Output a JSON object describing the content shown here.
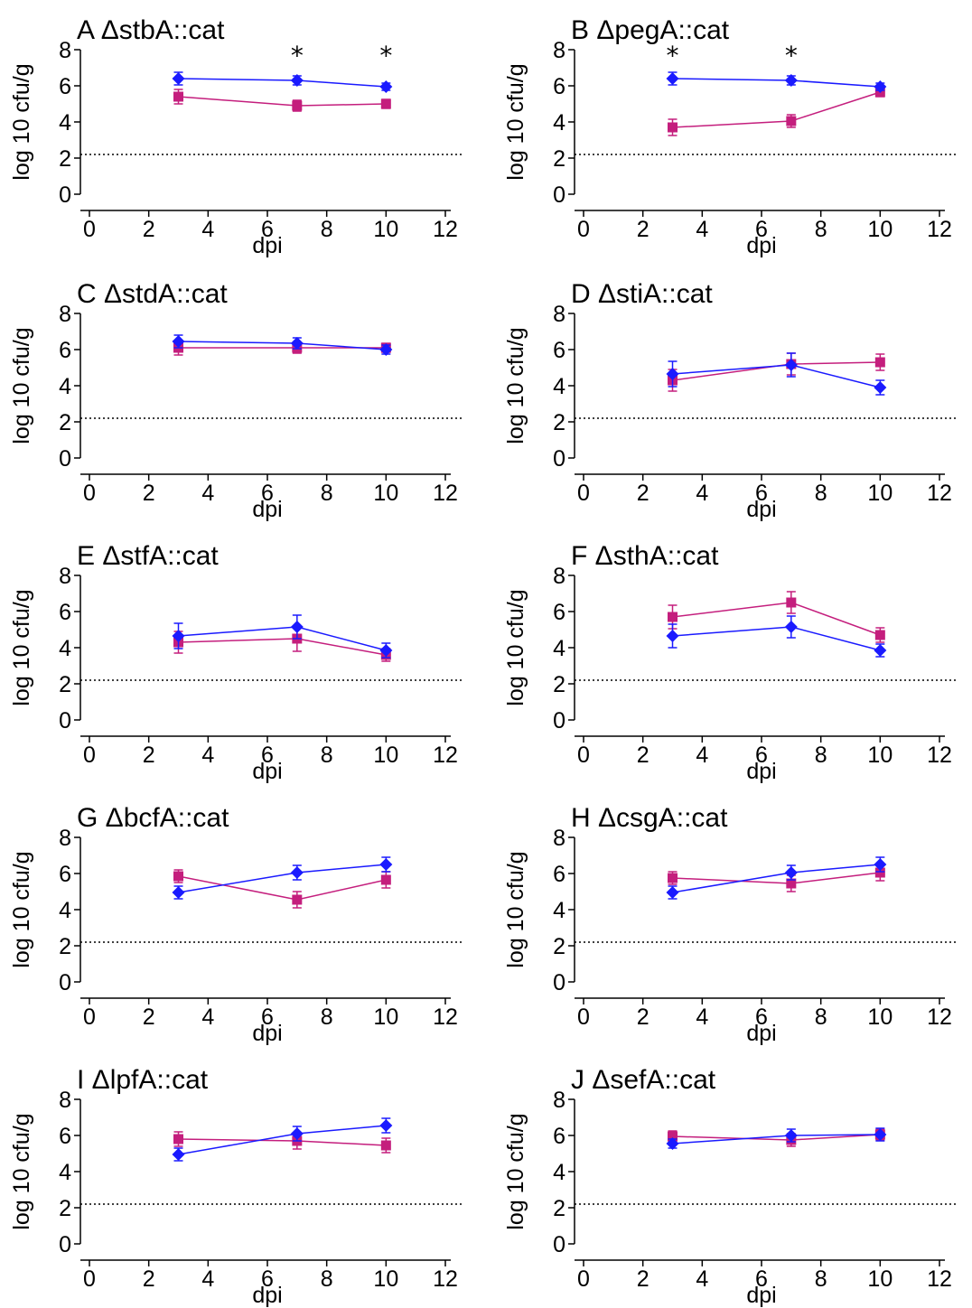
{
  "chart_data": [
    {
      "type": "line",
      "letter": "A",
      "title": "ΔstbA::cat",
      "xlabel": "dpi",
      "ylabel": "log 10 cfu/g",
      "xlim": [
        0,
        12
      ],
      "ylim": [
        0,
        8
      ],
      "xticks": [
        "0",
        "2",
        "4",
        "6",
        "8",
        "10",
        "12"
      ],
      "yticks": [
        "0",
        "2",
        "4",
        "6",
        "8"
      ],
      "detection_limit": 2.2,
      "x": [
        3,
        7,
        10
      ],
      "series": [
        {
          "color": "#1a1aff",
          "marker": "diamond",
          "values": [
            6.4,
            6.3,
            5.95
          ],
          "errors": [
            0.35,
            0.25,
            0.2
          ]
        },
        {
          "color": "#c41e7d",
          "marker": "square",
          "values": [
            5.4,
            4.9,
            5.0
          ],
          "errors": [
            0.4,
            0.3,
            0.25
          ]
        }
      ],
      "significance": [
        "",
        "*",
        "*"
      ]
    },
    {
      "type": "line",
      "letter": "B",
      "title": "ΔpegA::cat",
      "xlabel": "dpi",
      "ylabel": "log 10 cfu/g",
      "xlim": [
        0,
        12
      ],
      "ylim": [
        0,
        8
      ],
      "xticks": [
        "0",
        "2",
        "4",
        "6",
        "8",
        "10",
        "12"
      ],
      "yticks": [
        "0",
        "2",
        "4",
        "6",
        "8"
      ],
      "detection_limit": 2.2,
      "x": [
        3,
        7,
        10
      ],
      "series": [
        {
          "color": "#1a1aff",
          "marker": "diamond",
          "values": [
            6.4,
            6.3,
            5.95
          ],
          "errors": [
            0.35,
            0.25,
            0.2
          ]
        },
        {
          "color": "#c41e7d",
          "marker": "square",
          "values": [
            3.7,
            4.05,
            5.65
          ],
          "errors": [
            0.45,
            0.35,
            0.25
          ]
        }
      ],
      "significance": [
        "*",
        "*",
        ""
      ]
    },
    {
      "type": "line",
      "letter": "C",
      "title": "ΔstdA::cat",
      "xlabel": "dpi",
      "ylabel": "log 10 cfu/g",
      "xlim": [
        0,
        12
      ],
      "ylim": [
        0,
        8
      ],
      "xticks": [
        "0",
        "2",
        "4",
        "6",
        "8",
        "10",
        "12"
      ],
      "yticks": [
        "0",
        "2",
        "4",
        "6",
        "8"
      ],
      "detection_limit": 2.2,
      "x": [
        3,
        7,
        10
      ],
      "series": [
        {
          "color": "#1a1aff",
          "marker": "diamond",
          "values": [
            6.45,
            6.35,
            6.0
          ],
          "errors": [
            0.35,
            0.3,
            0.25
          ]
        },
        {
          "color": "#c41e7d",
          "marker": "square",
          "values": [
            6.1,
            6.1,
            6.1
          ],
          "errors": [
            0.4,
            0.3,
            0.25
          ]
        }
      ],
      "significance": [
        "",
        "",
        ""
      ]
    },
    {
      "type": "line",
      "letter": "D",
      "title": "ΔstiA::cat",
      "xlabel": "dpi",
      "ylabel": "log 10 cfu/g",
      "xlim": [
        0,
        12
      ],
      "ylim": [
        0,
        8
      ],
      "xticks": [
        "0",
        "2",
        "4",
        "6",
        "8",
        "10",
        "12"
      ],
      "yticks": [
        "0",
        "2",
        "4",
        "6",
        "8"
      ],
      "detection_limit": 2.2,
      "x": [
        3,
        7,
        10
      ],
      "series": [
        {
          "color": "#1a1aff",
          "marker": "diamond",
          "values": [
            4.65,
            5.15,
            3.9
          ],
          "errors": [
            0.7,
            0.65,
            0.4
          ]
        },
        {
          "color": "#c41e7d",
          "marker": "square",
          "values": [
            4.3,
            5.2,
            5.3
          ],
          "errors": [
            0.6,
            0.6,
            0.45
          ]
        }
      ],
      "significance": [
        "",
        "",
        ""
      ]
    },
    {
      "type": "line",
      "letter": "E",
      "title": "ΔstfA::cat",
      "xlabel": "dpi",
      "ylabel": "log 10 cfu/g",
      "xlim": [
        0,
        12
      ],
      "ylim": [
        0,
        8
      ],
      "xticks": [
        "0",
        "2",
        "4",
        "6",
        "8",
        "10",
        "12"
      ],
      "yticks": [
        "0",
        "2",
        "4",
        "6",
        "8"
      ],
      "detection_limit": 2.2,
      "x": [
        3,
        7,
        10
      ],
      "series": [
        {
          "color": "#1a1aff",
          "marker": "diamond",
          "values": [
            4.65,
            5.15,
            3.85
          ],
          "errors": [
            0.7,
            0.65,
            0.4
          ]
        },
        {
          "color": "#c41e7d",
          "marker": "square",
          "values": [
            4.3,
            4.5,
            3.6
          ],
          "errors": [
            0.6,
            0.7,
            0.35
          ]
        }
      ],
      "significance": [
        "",
        "",
        ""
      ]
    },
    {
      "type": "line",
      "letter": "F",
      "title": "ΔsthA::cat",
      "xlabel": "dpi",
      "ylabel": "log 10 cfu/g",
      "xlim": [
        0,
        12
      ],
      "ylim": [
        0,
        8
      ],
      "xticks": [
        "0",
        "2",
        "4",
        "6",
        "8",
        "10",
        "12"
      ],
      "yticks": [
        "0",
        "2",
        "4",
        "6",
        "8"
      ],
      "detection_limit": 2.2,
      "x": [
        3,
        7,
        10
      ],
      "series": [
        {
          "color": "#1a1aff",
          "marker": "diamond",
          "values": [
            4.65,
            5.15,
            3.85
          ],
          "errors": [
            0.65,
            0.6,
            0.35
          ]
        },
        {
          "color": "#c41e7d",
          "marker": "square",
          "values": [
            5.7,
            6.5,
            4.7
          ],
          "errors": [
            0.65,
            0.6,
            0.4
          ]
        }
      ],
      "significance": [
        "",
        "",
        ""
      ]
    },
    {
      "type": "line",
      "letter": "G",
      "title": "ΔbcfA::cat",
      "xlabel": "dpi",
      "ylabel": "log 10 cfu/g",
      "xlim": [
        0,
        12
      ],
      "ylim": [
        0,
        8
      ],
      "xticks": [
        "0",
        "2",
        "4",
        "6",
        "8",
        "10",
        "12"
      ],
      "yticks": [
        "0",
        "2",
        "4",
        "6",
        "8"
      ],
      "detection_limit": 2.2,
      "x": [
        3,
        7,
        10
      ],
      "series": [
        {
          "color": "#1a1aff",
          "marker": "diamond",
          "values": [
            4.95,
            6.05,
            6.5
          ],
          "errors": [
            0.35,
            0.4,
            0.4
          ]
        },
        {
          "color": "#c41e7d",
          "marker": "square",
          "values": [
            5.85,
            4.55,
            5.65
          ],
          "errors": [
            0.35,
            0.45,
            0.45
          ]
        }
      ],
      "significance": [
        "",
        "",
        ""
      ]
    },
    {
      "type": "line",
      "letter": "H",
      "title": "ΔcsgA::cat",
      "xlabel": "dpi",
      "ylabel": "log 10 cfu/g",
      "xlim": [
        0,
        12
      ],
      "ylim": [
        0,
        8
      ],
      "xticks": [
        "0",
        "2",
        "4",
        "6",
        "8",
        "10",
        "12"
      ],
      "yticks": [
        "0",
        "2",
        "4",
        "6",
        "8"
      ],
      "detection_limit": 2.2,
      "x": [
        3,
        7,
        10
      ],
      "series": [
        {
          "color": "#1a1aff",
          "marker": "diamond",
          "values": [
            4.95,
            6.05,
            6.5
          ],
          "errors": [
            0.35,
            0.4,
            0.4
          ]
        },
        {
          "color": "#c41e7d",
          "marker": "square",
          "values": [
            5.75,
            5.45,
            6.05
          ],
          "errors": [
            0.35,
            0.45,
            0.45
          ]
        }
      ],
      "significance": [
        "",
        "",
        ""
      ]
    },
    {
      "type": "line",
      "letter": "I",
      "title": "ΔlpfA::cat",
      "xlabel": "dpi",
      "ylabel": "log 10 cfu/g",
      "xlim": [
        0,
        12
      ],
      "ylim": [
        0,
        8
      ],
      "xticks": [
        "0",
        "2",
        "4",
        "6",
        "8",
        "10",
        "12"
      ],
      "yticks": [
        "0",
        "2",
        "4",
        "6",
        "8"
      ],
      "detection_limit": 2.2,
      "x": [
        3,
        7,
        10
      ],
      "series": [
        {
          "color": "#1a1aff",
          "marker": "diamond",
          "values": [
            4.95,
            6.1,
            6.55
          ],
          "errors": [
            0.35,
            0.4,
            0.4
          ]
        },
        {
          "color": "#c41e7d",
          "marker": "square",
          "values": [
            5.8,
            5.7,
            5.45
          ],
          "errors": [
            0.4,
            0.45,
            0.4
          ]
        }
      ],
      "significance": [
        "",
        "",
        ""
      ]
    },
    {
      "type": "line",
      "letter": "J",
      "title": "ΔsefA::cat",
      "xlabel": "dpi",
      "ylabel": "log 10 cfu/g",
      "xlim": [
        0,
        12
      ],
      "ylim": [
        0,
        8
      ],
      "xticks": [
        "0",
        "2",
        "4",
        "6",
        "8",
        "10",
        "12"
      ],
      "yticks": [
        "0",
        "2",
        "4",
        "6",
        "8"
      ],
      "detection_limit": 2.2,
      "x": [
        3,
        7,
        10
      ],
      "series": [
        {
          "color": "#1a1aff",
          "marker": "diamond",
          "values": [
            5.55,
            6.0,
            6.05
          ],
          "errors": [
            0.25,
            0.35,
            0.35
          ]
        },
        {
          "color": "#c41e7d",
          "marker": "square",
          "values": [
            5.95,
            5.75,
            6.05
          ],
          "errors": [
            0.3,
            0.35,
            0.3
          ]
        }
      ],
      "significance": [
        "",
        "",
        ""
      ]
    }
  ]
}
